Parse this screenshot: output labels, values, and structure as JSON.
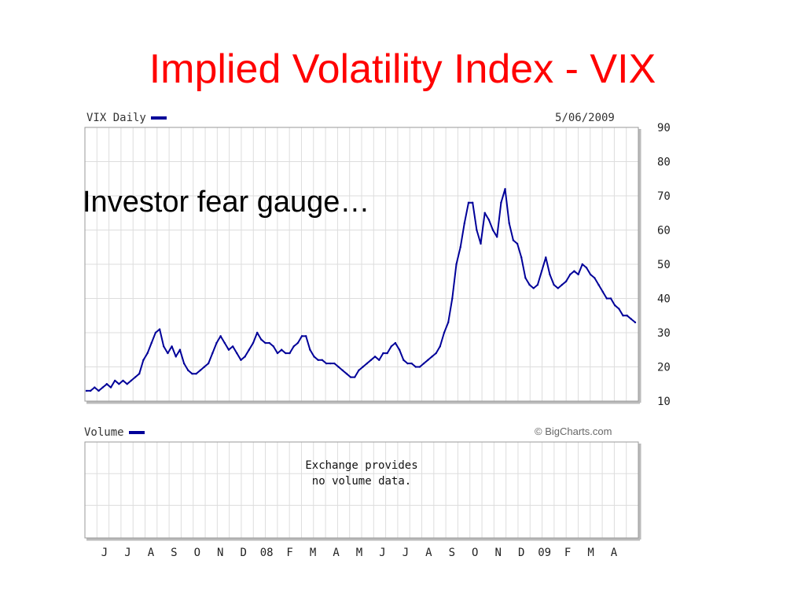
{
  "slide": {
    "title": "Implied Volatility Index - VIX",
    "subtitle": "Investor fear gauge…"
  },
  "colors": {
    "title": "#ff0000",
    "series": "#000099",
    "grid": "#dddddd",
    "frame": "#999999"
  },
  "chart_data": [
    {
      "type": "line",
      "title": "VIX Daily",
      "date": "5/06/2009",
      "ylim": [
        10,
        90
      ],
      "yticks": [
        90,
        80,
        70,
        60,
        50,
        40,
        30,
        20,
        10
      ],
      "grid": true,
      "series": [
        {
          "name": "VIX Daily",
          "values": [
            13,
            13,
            14,
            13,
            14,
            15,
            14,
            16,
            15,
            16,
            15,
            16,
            17,
            18,
            22,
            24,
            27,
            30,
            31,
            26,
            24,
            26,
            23,
            25,
            21,
            19,
            18,
            18,
            19,
            20,
            21,
            24,
            27,
            29,
            27,
            25,
            26,
            24,
            22,
            23,
            25,
            27,
            30,
            28,
            27,
            27,
            26,
            24,
            25,
            24,
            24,
            26,
            27,
            29,
            29,
            25,
            23,
            22,
            22,
            21,
            21,
            21,
            20,
            19,
            18,
            17,
            17,
            19,
            20,
            21,
            22,
            23,
            22,
            24,
            24,
            26,
            27,
            25,
            22,
            21,
            21,
            20,
            20,
            21,
            22,
            23,
            24,
            26,
            30,
            33,
            40,
            50,
            55,
            62,
            68,
            68,
            60,
            56,
            65,
            63,
            60,
            58,
            68,
            72,
            62,
            57,
            56,
            52,
            46,
            44,
            43,
            44,
            48,
            52,
            47,
            44,
            43,
            44,
            45,
            47,
            48,
            47,
            50,
            49,
            47,
            46,
            44,
            42,
            40,
            40,
            38,
            37,
            35,
            35,
            34,
            33
          ]
        }
      ],
      "xticks": [
        "J",
        "J",
        "A",
        "S",
        "O",
        "N",
        "D",
        "08",
        "F",
        "M",
        "A",
        "M",
        "J",
        "J",
        "A",
        "S",
        "O",
        "N",
        "D",
        "09",
        "F",
        "M",
        "A"
      ],
      "watermark": "© BigCharts.com"
    },
    {
      "type": "bar",
      "title": "Volume",
      "note_lines": [
        "Exchange provides",
        "no volume data."
      ]
    }
  ]
}
